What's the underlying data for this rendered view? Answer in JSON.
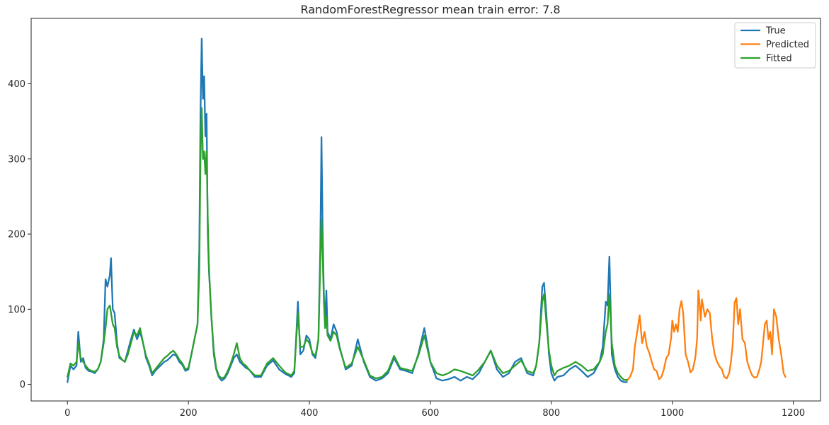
{
  "chart_data": {
    "type": "line",
    "title": "RandomForestRegressor mean train error: 7.8",
    "xlabel": "",
    "ylabel": "",
    "xlim": [
      -60,
      1245
    ],
    "ylim": [
      -22,
      487
    ],
    "xticks": [
      0,
      200,
      400,
      600,
      800,
      1000,
      1200
    ],
    "yticks": [
      0,
      100,
      200,
      300,
      400
    ],
    "xtick_labels": [
      "0",
      "200",
      "400",
      "600",
      "800",
      "1000",
      "1200"
    ],
    "ytick_labels": [
      "0",
      "100",
      "200",
      "300",
      "400"
    ],
    "grid": false,
    "legend_position": "top-right",
    "legend": [
      "True",
      "Predicted",
      "Fitted"
    ],
    "series": [
      {
        "name": "True",
        "color": "#1f77b4",
        "x": [
          0,
          5,
          10,
          15,
          18,
          22,
          26,
          30,
          35,
          40,
          45,
          50,
          55,
          60,
          63,
          66,
          70,
          72,
          75,
          78,
          82,
          86,
          90,
          95,
          100,
          105,
          110,
          115,
          120,
          125,
          130,
          135,
          140,
          145,
          150,
          155,
          160,
          165,
          170,
          175,
          180,
          185,
          190,
          195,
          200,
          205,
          210,
          215,
          218,
          220,
          222,
          224,
          226,
          228,
          230,
          232,
          234,
          238,
          242,
          246,
          250,
          255,
          260,
          265,
          270,
          275,
          280,
          285,
          290,
          295,
          300,
          310,
          320,
          330,
          340,
          350,
          360,
          370,
          375,
          378,
          381,
          385,
          390,
          395,
          400,
          405,
          410,
          415,
          418,
          420,
          422,
          424,
          426,
          428,
          430,
          435,
          440,
          445,
          450,
          455,
          460,
          470,
          480,
          490,
          500,
          510,
          520,
          530,
          540,
          550,
          560,
          570,
          580,
          590,
          600,
          610,
          620,
          630,
          640,
          650,
          660,
          670,
          680,
          690,
          700,
          710,
          720,
          730,
          740,
          750,
          760,
          770,
          775,
          780,
          785,
          788,
          792,
          796,
          800,
          805,
          810,
          820,
          830,
          840,
          850,
          860,
          870,
          880,
          885,
          890,
          893,
          896,
          900,
          905,
          910,
          915,
          920,
          925
        ],
        "values": [
          3,
          25,
          20,
          25,
          70,
          30,
          35,
          22,
          18,
          17,
          15,
          20,
          30,
          60,
          140,
          130,
          145,
          168,
          100,
          95,
          55,
          35,
          33,
          30,
          45,
          60,
          73,
          60,
          70,
          55,
          35,
          25,
          12,
          18,
          22,
          26,
          30,
          32,
          36,
          40,
          38,
          30,
          26,
          18,
          20,
          40,
          60,
          80,
          180,
          360,
          460,
          380,
          410,
          330,
          360,
          200,
          150,
          90,
          40,
          20,
          10,
          5,
          8,
          15,
          25,
          35,
          40,
          30,
          26,
          22,
          20,
          10,
          10,
          25,
          32,
          20,
          14,
          10,
          15,
          60,
          110,
          40,
          45,
          65,
          60,
          40,
          35,
          60,
          180,
          329,
          200,
          120,
          80,
          125,
          70,
          60,
          80,
          70,
          50,
          35,
          20,
          25,
          60,
          30,
          10,
          5,
          8,
          15,
          35,
          20,
          18,
          15,
          40,
          75,
          30,
          8,
          5,
          7,
          10,
          5,
          10,
          7,
          15,
          30,
          45,
          20,
          10,
          15,
          30,
          35,
          15,
          12,
          25,
          55,
          130,
          135,
          90,
          40,
          15,
          5,
          10,
          12,
          20,
          25,
          18,
          10,
          15,
          30,
          50,
          110,
          105,
          170,
          40,
          20,
          10,
          5,
          3,
          3
        ]
      },
      {
        "name": "Predicted",
        "color": "#ff7f0e",
        "x": [
          925,
          930,
          935,
          938,
          942,
          946,
          948,
          950,
          954,
          958,
          962,
          966,
          970,
          974,
          978,
          982,
          986,
          990,
          994,
          998,
          1000,
          1003,
          1006,
          1009,
          1012,
          1015,
          1018,
          1022,
          1026,
          1030,
          1034,
          1038,
          1041,
          1043,
          1045,
          1047,
          1049,
          1051,
          1054,
          1058,
          1062,
          1066,
          1070,
          1074,
          1078,
          1082,
          1086,
          1090,
          1094,
          1097,
          1100,
          1103,
          1106,
          1109,
          1112,
          1116,
          1120,
          1124,
          1128,
          1132,
          1136,
          1140,
          1144,
          1147,
          1150,
          1153,
          1156,
          1159,
          1162,
          1165,
          1168,
          1172,
          1176,
          1180,
          1184,
          1187
        ],
        "values": [
          5,
          10,
          20,
          50,
          70,
          92,
          75,
          55,
          70,
          50,
          42,
          30,
          20,
          18,
          7,
          10,
          20,
          35,
          40,
          62,
          85,
          70,
          80,
          70,
          100,
          111,
          95,
          40,
          30,
          16,
          20,
          35,
          60,
          125,
          110,
          85,
          113,
          104,
          90,
          100,
          95,
          60,
          40,
          30,
          24,
          20,
          10,
          8,
          15,
          30,
          55,
          109,
          115,
          80,
          100,
          60,
          55,
          30,
          20,
          12,
          9,
          10,
          20,
          30,
          55,
          80,
          85,
          60,
          70,
          40,
          100,
          90,
          60,
          40,
          15,
          10
        ]
      },
      {
        "name": "Fitted",
        "color": "#2ca02c",
        "x": [
          0,
          5,
          10,
          15,
          18,
          22,
          26,
          30,
          35,
          40,
          45,
          50,
          55,
          60,
          63,
          66,
          70,
          72,
          75,
          78,
          82,
          86,
          90,
          95,
          100,
          105,
          110,
          115,
          120,
          125,
          130,
          135,
          140,
          145,
          150,
          155,
          160,
          165,
          170,
          175,
          180,
          185,
          190,
          195,
          200,
          205,
          210,
          215,
          218,
          220,
          222,
          224,
          226,
          228,
          230,
          232,
          234,
          238,
          242,
          246,
          250,
          255,
          260,
          265,
          270,
          275,
          280,
          285,
          290,
          295,
          300,
          310,
          320,
          330,
          340,
          350,
          360,
          370,
          375,
          378,
          381,
          385,
          390,
          395,
          400,
          405,
          410,
          415,
          418,
          420,
          422,
          424,
          426,
          428,
          430,
          435,
          440,
          445,
          450,
          455,
          460,
          470,
          480,
          490,
          500,
          510,
          520,
          530,
          540,
          550,
          560,
          570,
          580,
          590,
          600,
          610,
          620,
          630,
          640,
          650,
          660,
          670,
          680,
          690,
          700,
          710,
          720,
          730,
          740,
          750,
          760,
          770,
          775,
          780,
          785,
          788,
          792,
          796,
          800,
          805,
          810,
          820,
          830,
          840,
          850,
          860,
          870,
          880,
          885,
          890,
          893,
          896,
          900,
          905,
          910,
          915,
          920,
          925
        ],
        "values": [
          10,
          28,
          25,
          30,
          55,
          35,
          30,
          25,
          20,
          18,
          17,
          20,
          30,
          55,
          75,
          100,
          105,
          95,
          80,
          75,
          50,
          38,
          33,
          30,
          40,
          55,
          70,
          65,
          75,
          55,
          38,
          28,
          15,
          20,
          25,
          30,
          35,
          38,
          42,
          45,
          40,
          33,
          28,
          20,
          22,
          40,
          60,
          80,
          150,
          300,
          368,
          300,
          310,
          280,
          310,
          220,
          155,
          90,
          45,
          22,
          12,
          8,
          10,
          18,
          28,
          40,
          55,
          35,
          28,
          25,
          20,
          12,
          12,
          28,
          35,
          25,
          16,
          12,
          18,
          55,
          95,
          50,
          50,
          60,
          55,
          42,
          38,
          60,
          160,
          220,
          170,
          110,
          75,
          90,
          65,
          58,
          70,
          65,
          48,
          35,
          22,
          28,
          50,
          32,
          12,
          8,
          10,
          18,
          38,
          22,
          20,
          18,
          38,
          65,
          30,
          15,
          12,
          15,
          20,
          18,
          15,
          12,
          20,
          30,
          45,
          25,
          15,
          18,
          25,
          32,
          18,
          15,
          25,
          55,
          110,
          120,
          80,
          45,
          25,
          12,
          18,
          22,
          25,
          30,
          25,
          18,
          20,
          30,
          40,
          70,
          80,
          120,
          55,
          25,
          15,
          10,
          6,
          6
        ]
      }
    ]
  }
}
